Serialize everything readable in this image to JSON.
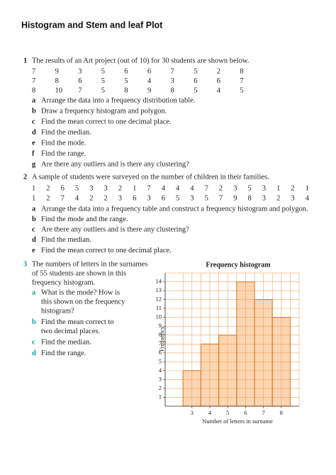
{
  "title": "Histogram and Stem and leaf Plot",
  "questions": [
    {
      "number": "1",
      "text": [
        "The results of an Art project (out of 10) for 30 students are shown below."
      ],
      "data": [
        [
          7,
          9,
          3,
          5,
          6,
          6,
          7,
          5,
          2,
          8
        ],
        [
          7,
          8,
          6,
          5,
          5,
          4,
          3,
          6,
          6,
          7
        ],
        [
          8,
          10,
          7,
          5,
          8,
          9,
          8,
          5,
          4,
          5
        ]
      ],
      "parts": [
        {
          "letter": "a",
          "text": [
            "Arrange the data into a frequency distribution table."
          ]
        },
        {
          "letter": "b",
          "text": [
            "Draw a frequency histogram and polygon."
          ]
        },
        {
          "letter": "c",
          "text": [
            "Find the mean correct to one decimal place."
          ]
        },
        {
          "letter": "d",
          "text": [
            "Find the median."
          ]
        },
        {
          "letter": "e",
          "text": [
            "Find the mode."
          ]
        },
        {
          "letter": "f",
          "text": [
            "Find the range."
          ]
        },
        {
          "letter": "g",
          "text": [
            "Are there any outliers and is there any clustering?"
          ]
        }
      ]
    },
    {
      "number": "2",
      "text": [
        "A sample of students were surveyed on the number of children in their families."
      ],
      "data": [
        [
          1,
          2,
          6,
          5,
          3,
          3,
          2,
          1,
          7,
          4,
          4,
          4,
          7,
          2,
          3,
          5,
          3,
          1,
          2,
          1
        ],
        [
          1,
          2,
          7,
          4,
          2,
          2,
          3,
          6,
          3,
          6,
          5,
          3,
          5,
          7,
          9,
          8,
          3,
          2,
          3,
          4
        ]
      ],
      "parts": [
        {
          "letter": "a",
          "text": [
            "Arrange the data into a frequency table and construct a frequency histogram and polygon."
          ]
        },
        {
          "letter": "b",
          "text": [
            "Find the mode and the range."
          ]
        },
        {
          "letter": "c",
          "text": [
            "Are there any outliers and is there any clustering?"
          ]
        },
        {
          "letter": "d",
          "text": [
            "Find the median."
          ]
        },
        {
          "letter": "e",
          "text": [
            "Find the mean correct to one decimal place."
          ]
        }
      ]
    },
    {
      "number": "3",
      "text": [
        "The numbers of letters in the surnames",
        "of 55 students are shown in this",
        "frequency histogram."
      ],
      "parts": [
        {
          "letter": "a",
          "text": [
            "What is the mode? How is",
            "this shown on the frequency",
            "histogram?"
          ]
        },
        {
          "letter": "b",
          "text": [
            "Find the mean correct to",
            "two decimal places."
          ]
        },
        {
          "letter": "c",
          "text": [
            "Find the median."
          ]
        },
        {
          "letter": "d",
          "text": [
            "Find the range."
          ]
        }
      ]
    }
  ],
  "chart_data": {
    "type": "histogram",
    "title": "Frequency histogram",
    "x_label": "Number of letters in surname",
    "y_label": "Frequency",
    "bins": [
      2.5,
      3.5,
      4.5,
      5.5,
      6.5,
      7.5,
      8.5
    ],
    "values": [
      4,
      7,
      8,
      14,
      12,
      10
    ],
    "color": "#fcd6b2",
    "edge_color": "#e07b22",
    "grid_color": "#f0a463",
    "xlim": [
      1.5,
      9
    ],
    "ylim": [
      0,
      15
    ],
    "xticks": [
      3,
      4,
      5,
      6,
      7,
      8
    ],
    "yticks": [
      1,
      2,
      3,
      4,
      5,
      6,
      7,
      8,
      9,
      10,
      11,
      12,
      13,
      14
    ],
    "grid": true
  }
}
